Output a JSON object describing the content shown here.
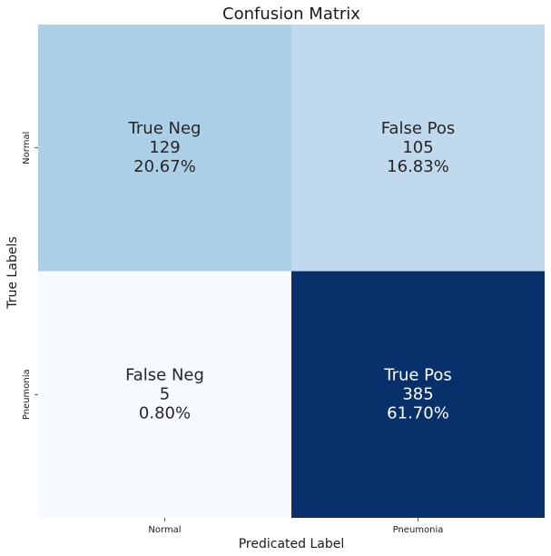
{
  "chart_data": {
    "type": "heatmap",
    "title": "Confusion Matrix",
    "xlabel": "Predicated Label",
    "ylabel": "True Labels",
    "x_categories": [
      "Normal",
      "Pneumonia"
    ],
    "y_categories": [
      "Normal",
      "Pneumonia"
    ],
    "colormap": "Blues",
    "colorbar": false,
    "cells": [
      {
        "row": 0,
        "col": 0,
        "name": "True Neg",
        "count": "129",
        "percent": "20.67%",
        "value": 129,
        "color": "#abd0e6",
        "text_color": "#262626"
      },
      {
        "row": 0,
        "col": 1,
        "name": "False Pos",
        "count": "105",
        "percent": "16.83%",
        "value": 105,
        "color": "#c1d9ed",
        "text_color": "#262626"
      },
      {
        "row": 1,
        "col": 0,
        "name": "False Neg",
        "count": "5",
        "percent": "0.80%",
        "value": 5,
        "color": "#f7fbff",
        "text_color": "#262626"
      },
      {
        "row": 1,
        "col": 1,
        "name": "True Pos",
        "count": "385",
        "percent": "61.70%",
        "value": 385,
        "color": "#08306b",
        "text_color": "#ffffff"
      }
    ]
  }
}
